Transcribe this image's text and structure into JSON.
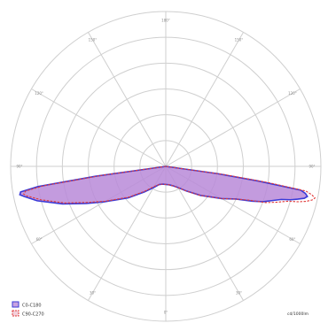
{
  "chart_data": {
    "type": "polar",
    "angle_labels": [
      "0°",
      "30°",
      "60°",
      "90°",
      "120°",
      "150°",
      "180°",
      "150°",
      "120°",
      "90°",
      "60°",
      "30°"
    ],
    "series": [
      {
        "name": "C0-C180",
        "color": "#3a3ad8",
        "fill": "#b98ad8",
        "points": [
          [
            -90,
            0
          ],
          [
            -83,
            0
          ],
          [
            -82,
            0.55
          ],
          [
            -81,
            1.0
          ],
          [
            -80,
            1.14
          ],
          [
            -79,
            1.15
          ],
          [
            -78,
            1.12
          ],
          [
            -75,
            1.03
          ],
          [
            -70,
            0.85
          ],
          [
            -65,
            0.68
          ],
          [
            -60,
            0.55
          ],
          [
            -50,
            0.38
          ],
          [
            -40,
            0.26
          ],
          [
            -30,
            0.19
          ],
          [
            -20,
            0.15
          ],
          [
            -10,
            0.14
          ],
          [
            0,
            0.14
          ],
          [
            10,
            0.145
          ],
          [
            20,
            0.16
          ],
          [
            30,
            0.19
          ],
          [
            40,
            0.25
          ],
          [
            50,
            0.35
          ],
          [
            60,
            0.5
          ],
          [
            65,
            0.6
          ],
          [
            68,
            0.72
          ],
          [
            70,
            0.8
          ],
          [
            72,
            0.86
          ],
          [
            74,
            0.93
          ],
          [
            75,
            1.0
          ],
          [
            76,
            1.05
          ],
          [
            77,
            1.1
          ],
          [
            78,
            1.12
          ],
          [
            79,
            1.1
          ],
          [
            80,
            1.06
          ],
          [
            81,
            0.72
          ],
          [
            82,
            0.4
          ],
          [
            83,
            0
          ],
          [
            90,
            0
          ]
        ]
      },
      {
        "name": "C90-C270",
        "color": "#e03a3a",
        "fill": "#e8b5c5",
        "points": [
          [
            -90,
            0
          ],
          [
            -83,
            0
          ],
          [
            -82,
            0.5
          ],
          [
            -81,
            0.95
          ],
          [
            -80,
            1.1
          ],
          [
            -79,
            1.12
          ],
          [
            -78,
            1.1
          ],
          [
            -75,
            1.0
          ],
          [
            -70,
            0.83
          ],
          [
            -65,
            0.66
          ],
          [
            -60,
            0.54
          ],
          [
            -50,
            0.37
          ],
          [
            -40,
            0.25
          ],
          [
            -30,
            0.18
          ],
          [
            -20,
            0.15
          ],
          [
            -10,
            0.14
          ],
          [
            0,
            0.14
          ],
          [
            10,
            0.145
          ],
          [
            20,
            0.16
          ],
          [
            30,
            0.19
          ],
          [
            40,
            0.25
          ],
          [
            50,
            0.35
          ],
          [
            60,
            0.5
          ],
          [
            65,
            0.6
          ],
          [
            68,
            0.7
          ],
          [
            70,
            0.82
          ],
          [
            72,
            0.9
          ],
          [
            74,
            0.98
          ],
          [
            75,
            1.06
          ],
          [
            76,
            1.12
          ],
          [
            77,
            1.16
          ],
          [
            78,
            1.18
          ],
          [
            79,
            1.15
          ],
          [
            80,
            1.1
          ],
          [
            81,
            0.8
          ],
          [
            82,
            0.45
          ],
          [
            83,
            0
          ],
          [
            90,
            0
          ]
        ]
      }
    ],
    "unit_label": "cd/1000lm",
    "grid": true,
    "legend_position": "bottom-left"
  }
}
